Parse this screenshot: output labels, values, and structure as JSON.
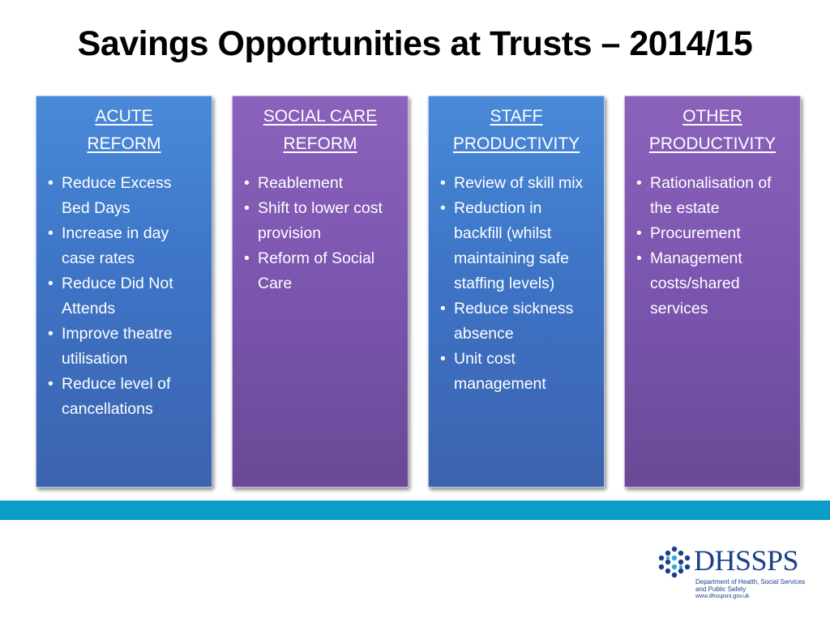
{
  "slide": {
    "title": "Savings Opportunities at Trusts – 2014/15"
  },
  "panels": [
    {
      "heading_line1": "ACUTE",
      "heading_line2": "REFORM",
      "items": [
        "Reduce Excess Bed Days",
        "Increase in day case rates",
        "Reduce Did Not Attends",
        "Improve theatre utilisation",
        "Reduce level of cancellations"
      ]
    },
    {
      "heading_line1": "SOCIAL CARE",
      "heading_line2": "REFORM",
      "items": [
        "Reablement",
        "Shift to lower cost provision",
        "Reform of Social Care"
      ]
    },
    {
      "heading_line1": "STAFF",
      "heading_line2": "PRODUCTIVITY",
      "items": [
        "Review of skill mix",
        "Reduction in backfill (whilst maintaining safe staffing levels)",
        "Reduce sickness absence",
        "Unit cost management"
      ]
    },
    {
      "heading_line1": "OTHER",
      "heading_line2": "PRODUCTIVITY",
      "items": [
        "Rationalisation of the estate",
        "Procurement",
        "Management costs/shared services"
      ]
    }
  ],
  "bullet_char": "•",
  "logo": {
    "name": "DHSSPS",
    "subtitle": "Department of Health, Social Services and Public Safety",
    "url": "www.dhsspsni.gov.uk",
    "icon": "hexagon-cluster-icon"
  },
  "colors": {
    "panel_blue": "#3d74c6",
    "panel_purple": "#7a55ae",
    "bottom_bar": "#0a9dc7",
    "logo_navy": "#1a3f8a"
  }
}
